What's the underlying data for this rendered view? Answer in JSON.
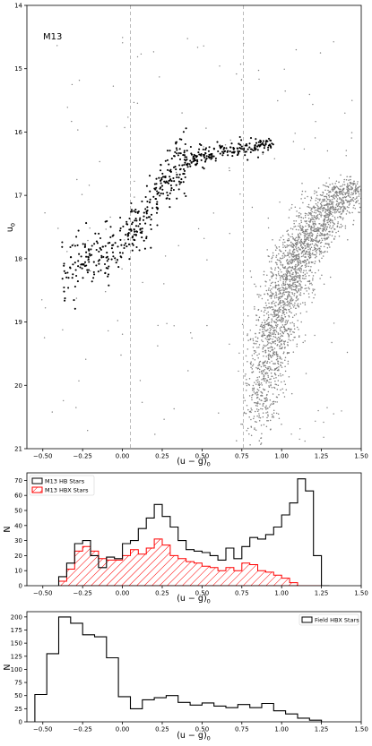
{
  "chart_data": [
    {
      "type": "scatter",
      "annotation": "M13",
      "xlabel": "(u − g)",
      "xlabel_sub": "0",
      "ylabel": "u",
      "ylabel_sub": "0",
      "xlim": [
        -0.6,
        1.5
      ],
      "ylim": [
        21,
        14
      ],
      "y_inverted": true,
      "xticks": [
        -0.5,
        -0.25,
        0.0,
        0.25,
        0.5,
        0.75,
        1.0,
        1.25,
        1.5
      ],
      "xtick_labels": [
        "−0.50",
        "−0.25",
        "0.00",
        "0.25",
        "0.50",
        "0.75",
        "1.00",
        "1.25",
        "1.50"
      ],
      "yticks": [
        14,
        15,
        16,
        17,
        18,
        19,
        20,
        21
      ],
      "ytick_labels": [
        "14",
        "15",
        "16",
        "17",
        "18",
        "19",
        "20",
        "21"
      ],
      "vlines": [
        0.05,
        0.76
      ],
      "colors": {
        "hb": "#000000",
        "field": "#7f7f7f",
        "vline": "#aaaaaa"
      },
      "hb_sequence": {
        "description_points": [
          [
            -0.35,
            18.2
          ],
          [
            -0.25,
            18.0
          ],
          [
            -0.1,
            17.9
          ],
          [
            0.05,
            17.6
          ],
          [
            0.15,
            17.3
          ],
          [
            0.25,
            16.8
          ],
          [
            0.4,
            16.45
          ],
          [
            0.6,
            16.3
          ],
          [
            0.8,
            16.25
          ],
          [
            1.0,
            16.15
          ],
          [
            1.15,
            16.05
          ],
          [
            1.3,
            15.95
          ]
        ],
        "n_points": 560
      },
      "field_stars": {
        "rgb_ridge": [
          [
            0.82,
            20.95
          ],
          [
            0.9,
            20.0
          ],
          [
            0.95,
            19.2
          ],
          [
            1.0,
            18.7
          ],
          [
            1.1,
            18.0
          ],
          [
            1.2,
            17.6
          ],
          [
            1.3,
            17.2
          ],
          [
            1.42,
            16.8
          ]
        ],
        "n_points": 2600
      }
    },
    {
      "type": "histogram",
      "ylabel": "N",
      "xlabel": "(u − g)",
      "xlabel_sub": "0",
      "xlim": [
        -0.6,
        1.5
      ],
      "ylim": [
        0,
        75
      ],
      "xticks": [
        -0.5,
        -0.25,
        0.0,
        0.25,
        0.5,
        0.75,
        1.0,
        1.25,
        1.5
      ],
      "xtick_labels": [
        "−0.50",
        "−0.25",
        "0.00",
        "0.25",
        "0.50",
        "0.75",
        "1.00",
        "1.25",
        "1.50"
      ],
      "yticks": [
        0,
        10,
        20,
        30,
        40,
        50,
        60,
        70
      ],
      "ytick_labels": [
        "0",
        "10",
        "20",
        "30",
        "40",
        "50",
        "60",
        "70"
      ],
      "bin_edges": [
        -0.4,
        -0.35,
        -0.3,
        -0.25,
        -0.2,
        -0.15,
        -0.1,
        -0.05,
        0.0,
        0.05,
        0.1,
        0.15,
        0.2,
        0.25,
        0.3,
        0.35,
        0.4,
        0.45,
        0.5,
        0.55,
        0.6,
        0.65,
        0.7,
        0.75,
        0.8,
        0.85,
        0.9,
        0.95,
        1.0,
        1.05,
        1.1,
        1.15,
        1.2,
        1.25,
        1.3
      ],
      "series": [
        {
          "name": "M13 HB Stars",
          "style": "step",
          "color": "#000000",
          "values": [
            6,
            15,
            28,
            30,
            20,
            12,
            19,
            18,
            28,
            30,
            38,
            45,
            54,
            46,
            39,
            30,
            24,
            23,
            22,
            20,
            17,
            25,
            18,
            26,
            32,
            31,
            34,
            39,
            47,
            55,
            71,
            63,
            20,
            0
          ]
        },
        {
          "name": "M13 HBX Stars",
          "style": "hatched",
          "color": "#ff0000",
          "values": [
            3,
            11,
            23,
            26,
            23,
            18,
            17,
            17,
            20,
            24,
            21,
            25,
            31,
            27,
            20,
            18,
            16,
            15,
            13,
            12,
            10,
            12,
            10,
            15,
            14,
            10,
            9,
            7,
            5,
            2,
            0,
            0,
            0,
            0
          ]
        }
      ],
      "legend_position": "top-left"
    },
    {
      "type": "histogram",
      "ylabel": "N",
      "xlabel": "(u − g)",
      "xlabel_sub": "0",
      "xlim": [
        -0.6,
        1.5
      ],
      "ylim": [
        0,
        210
      ],
      "xticks": [
        -0.5,
        -0.25,
        0.0,
        0.25,
        0.5,
        0.75,
        1.0,
        1.25,
        1.5
      ],
      "xtick_labels": [
        "−0.50",
        "−0.25",
        "0.00",
        "0.25",
        "0.50",
        "0.75",
        "1.00",
        "1.25",
        "1.50"
      ],
      "yticks": [
        0,
        25,
        50,
        75,
        100,
        125,
        150,
        175,
        200
      ],
      "ytick_labels": [
        "0",
        "25",
        "50",
        "75",
        "100",
        "125",
        "150",
        "175",
        "200"
      ],
      "bin_edges": [
        -0.55,
        -0.475,
        -0.4,
        -0.325,
        -0.25,
        -0.175,
        -0.1,
        -0.025,
        0.05,
        0.125,
        0.2,
        0.275,
        0.35,
        0.425,
        0.5,
        0.575,
        0.65,
        0.725,
        0.8,
        0.875,
        0.95,
        1.025,
        1.1,
        1.175,
        1.25
      ],
      "series": [
        {
          "name": "Field HBX Stars",
          "style": "step",
          "color": "#000000",
          "values": [
            52,
            130,
            200,
            188,
            166,
            162,
            122,
            48,
            25,
            42,
            46,
            50,
            37,
            32,
            36,
            30,
            27,
            33,
            27,
            35,
            21,
            15,
            7,
            3
          ]
        }
      ],
      "legend_position": "top-right"
    }
  ]
}
